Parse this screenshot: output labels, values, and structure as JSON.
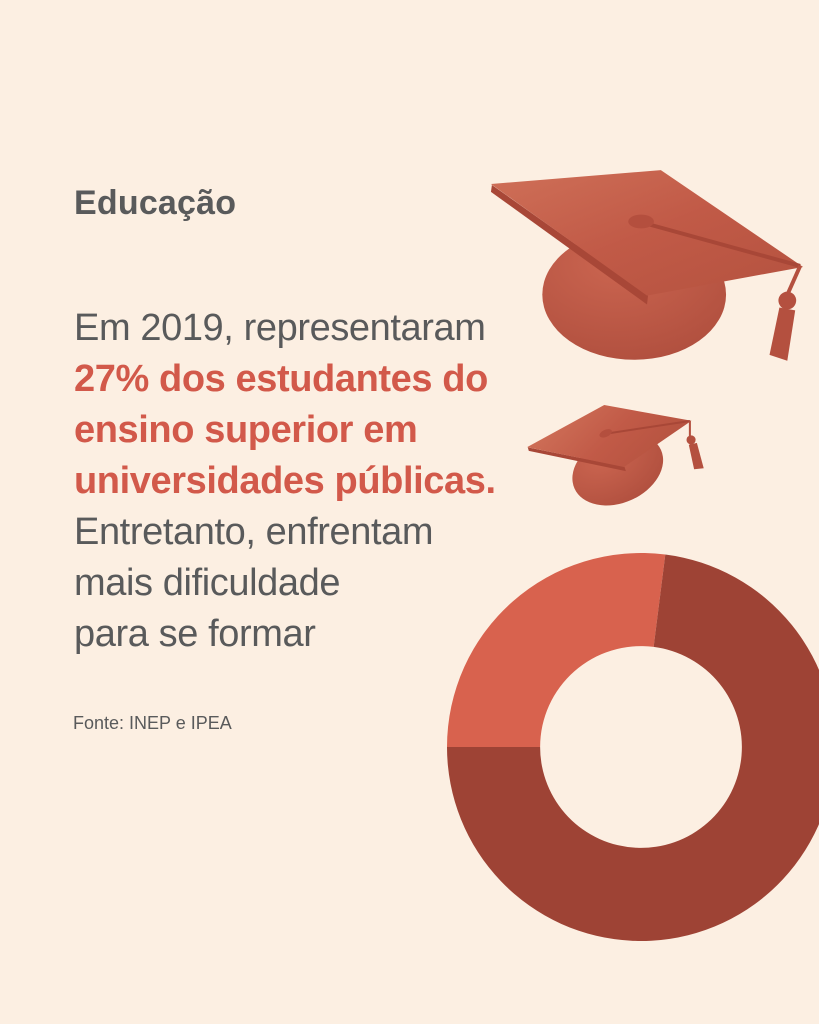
{
  "colors": {
    "background": "#fcefe2",
    "text_gray": "#595a5b",
    "accent_red": "#d2594a",
    "donut_light": "#d8624e",
    "donut_dark": "#9e4335",
    "cap_red": "#bf5a48"
  },
  "header": {
    "title": "Educação"
  },
  "headline": {
    "lines": [
      {
        "text": "Em 2019, representaram",
        "emphasis": false
      },
      {
        "text": "27% dos estudantes do",
        "emphasis": true
      },
      {
        "text": "ensino superior em",
        "emphasis": true
      },
      {
        "text": "universidades públicas.",
        "emphasis": true
      },
      {
        "text": "Entretanto, enfrentam",
        "emphasis": false
      },
      {
        "text": "mais dificuldade",
        "emphasis": false
      },
      {
        "text": "para se formar",
        "emphasis": false
      }
    ]
  },
  "source": {
    "label": "Fonte: INEP e IPEA"
  },
  "illustrations": {
    "large": "graduation-cap-icon",
    "small": "graduation-cap-icon"
  },
  "chart_data": {
    "type": "donut",
    "values": [
      27,
      73
    ],
    "colors": [
      "#d8624e",
      "#9e4335"
    ],
    "start_angle_deg": 270,
    "direction": "clockwise",
    "inner_radius_ratio": 0.52,
    "labels_shown": false,
    "legend": "none",
    "title": ""
  }
}
